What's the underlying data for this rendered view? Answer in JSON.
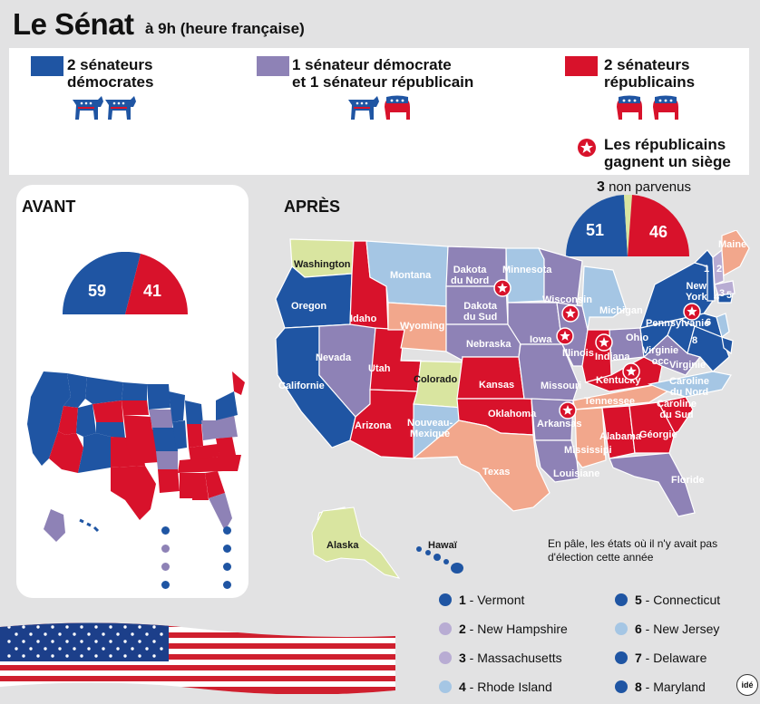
{
  "header": {
    "title": "Le Sénat",
    "subtitle": "à 9h (heure française)"
  },
  "legend": {
    "dem": "2 sénateurs\ndémocrates",
    "mixed": "1 sénateur démocrate\net 1 sénateur républicain",
    "rep": "2 sénateurs\nrépublicains",
    "gain": "Les républicains\ngagnent un siège"
  },
  "colors": {
    "dem": "#1f55a3",
    "mixed": "#8e82b6",
    "rep": "#d8122b",
    "pale_dem": "#a5c6e4",
    "pale_mixed": "#c0b3cf",
    "pale_rep": "#f2a78c",
    "pale_split": "#d9e5a0"
  },
  "avant": {
    "label": "AVANT",
    "dem": "59",
    "rep": "41"
  },
  "apres": {
    "label": "APRÈS",
    "dem": "51",
    "rep": "46",
    "non_parvenus_count": "3",
    "non_parvenus_label": "non parvenus"
  },
  "states": {
    "washington": "Washington",
    "oregon": "Oregon",
    "californie": "Californie",
    "idaho": "Idaho",
    "nevada": "Nevada",
    "utah": "Utah",
    "arizona": "Arizona",
    "montana": "Montana",
    "wyoming": "Wyoming",
    "colorado": "Colorado",
    "nouveau_mexique": "Nouveau-\nMexique",
    "dakota_nord": "Dakota\ndu Nord",
    "dakota_sud": "Dakota\ndu Sud",
    "nebraska": "Nebraska",
    "kansas": "Kansas",
    "oklahoma": "Oklahoma",
    "texas": "Texas",
    "minnesota": "Minnesota",
    "iowa": "Iowa",
    "missouri": "Missouri",
    "arkansas": "Arkansas",
    "louisiane": "Louisiane",
    "wisconsin": "Wisconsin",
    "illinois": "Illinois",
    "michigan": "Michigan",
    "indiana": "Indiana",
    "ohio": "Ohio",
    "kentucky": "Kentucky",
    "tennessee": "Tennessee",
    "mississipi": "Mississipi",
    "alabama": "Alabama",
    "georgie": "Géorgie",
    "floride": "Floride",
    "caroline_sud": "Caroline\ndu Sud",
    "caroline_nord": "Caroline\ndu Nord",
    "virginie": "Virginie",
    "virginie_occ": "Virginie\nocc",
    "pennsylvanie": "Pennsylvanie",
    "new_york": "New\nYork",
    "maine": "Maine",
    "alaska": "Alaska",
    "hawai": "Hawaï",
    "n1": "1",
    "n2": "2",
    "n3": "3",
    "n4": "4",
    "n5": "5",
    "n6": "6",
    "n8": "8"
  },
  "note": "En pâle, les états où il n'y avait pas d'élection cette année",
  "numbered_states": [
    {
      "num": "1",
      "name": "Vermont",
      "color": "#1f55a3"
    },
    {
      "num": "2",
      "name": "New Hampshire",
      "color": "#b8acd3"
    },
    {
      "num": "3",
      "name": "Massachusetts",
      "color": "#b8acd3"
    },
    {
      "num": "4",
      "name": "Rhode Island",
      "color": "#a5c6e4"
    },
    {
      "num": "5",
      "name": "Connecticut",
      "color": "#1f55a3"
    },
    {
      "num": "6",
      "name": "New Jersey",
      "color": "#a5c6e4"
    },
    {
      "num": "7",
      "name": "Delaware",
      "color": "#1f55a3"
    },
    {
      "num": "8",
      "name": "Maryland",
      "color": "#1f55a3"
    }
  ],
  "credit": "idé"
}
